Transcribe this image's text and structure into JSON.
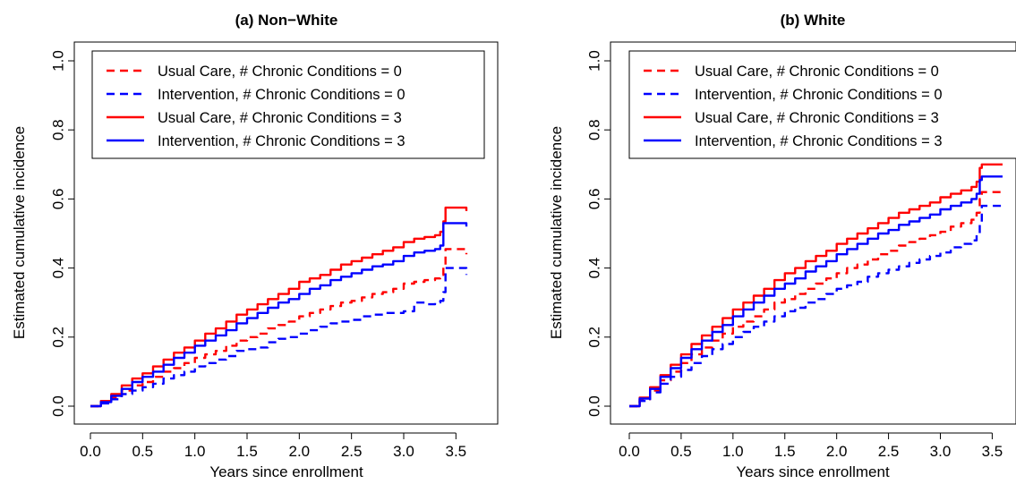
{
  "chart_data": [
    {
      "type": "line",
      "step": true,
      "title": "(a) Non−White",
      "xlabel": "Years since enrollment",
      "ylabel": "Estimated cumulative incidence",
      "xlim": [
        0.0,
        3.6
      ],
      "ylim": [
        0.0,
        1.0
      ],
      "xticks": [
        "0.0",
        "0.5",
        "1.0",
        "1.5",
        "2.0",
        "2.5",
        "3.0",
        "3.5"
      ],
      "yticks": [
        "0.0",
        "0.2",
        "0.4",
        "0.6",
        "0.8",
        "1.0"
      ],
      "legend_position": "top-right",
      "series": [
        {
          "name": "Usual Care, # Chronic Conditions = 0",
          "color": "#ff0000",
          "dash": "dashed",
          "x": [
            0.0,
            0.1,
            0.2,
            0.3,
            0.4,
            0.5,
            0.6,
            0.7,
            0.8,
            0.9,
            1.0,
            1.1,
            1.2,
            1.3,
            1.4,
            1.5,
            1.6,
            1.7,
            1.8,
            1.9,
            2.0,
            2.1,
            2.2,
            2.3,
            2.4,
            2.5,
            2.6,
            2.7,
            2.8,
            2.9,
            3.0,
            3.1,
            3.2,
            3.3,
            3.35,
            3.38,
            3.4,
            3.6
          ],
          "y": [
            0.0,
            0.01,
            0.025,
            0.045,
            0.06,
            0.07,
            0.085,
            0.1,
            0.11,
            0.125,
            0.14,
            0.15,
            0.16,
            0.175,
            0.19,
            0.2,
            0.21,
            0.225,
            0.235,
            0.245,
            0.26,
            0.27,
            0.28,
            0.29,
            0.3,
            0.305,
            0.315,
            0.325,
            0.33,
            0.34,
            0.355,
            0.36,
            0.365,
            0.37,
            0.38,
            0.405,
            0.455,
            0.44
          ]
        },
        {
          "name": "Intervention, # Chronic Conditions = 0",
          "color": "#0000ff",
          "dash": "dashed",
          "x": [
            0.0,
            0.1,
            0.2,
            0.3,
            0.4,
            0.5,
            0.6,
            0.7,
            0.8,
            0.9,
            1.0,
            1.1,
            1.2,
            1.3,
            1.4,
            1.5,
            1.6,
            1.7,
            1.8,
            1.9,
            2.0,
            2.1,
            2.2,
            2.3,
            2.4,
            2.5,
            2.6,
            2.7,
            2.8,
            2.9,
            3.0,
            3.1,
            3.2,
            3.3,
            3.35,
            3.38,
            3.4,
            3.6
          ],
          "y": [
            0.0,
            0.008,
            0.02,
            0.035,
            0.045,
            0.055,
            0.065,
            0.08,
            0.09,
            0.1,
            0.115,
            0.125,
            0.135,
            0.145,
            0.16,
            0.165,
            0.17,
            0.185,
            0.195,
            0.2,
            0.21,
            0.22,
            0.23,
            0.24,
            0.245,
            0.25,
            0.26,
            0.265,
            0.27,
            0.27,
            0.275,
            0.3,
            0.295,
            0.3,
            0.305,
            0.33,
            0.4,
            0.38
          ]
        },
        {
          "name": "Usual Care, # Chronic Conditions = 3",
          "color": "#ff0000",
          "dash": "solid",
          "x": [
            0.0,
            0.1,
            0.2,
            0.3,
            0.4,
            0.5,
            0.6,
            0.7,
            0.8,
            0.9,
            1.0,
            1.1,
            1.2,
            1.3,
            1.4,
            1.5,
            1.6,
            1.7,
            1.8,
            1.9,
            2.0,
            2.1,
            2.2,
            2.3,
            2.4,
            2.5,
            2.6,
            2.7,
            2.8,
            2.9,
            3.0,
            3.1,
            3.2,
            3.3,
            3.35,
            3.38,
            3.4,
            3.6
          ],
          "y": [
            0.0,
            0.015,
            0.035,
            0.06,
            0.08,
            0.095,
            0.115,
            0.135,
            0.155,
            0.17,
            0.19,
            0.21,
            0.225,
            0.245,
            0.265,
            0.28,
            0.295,
            0.31,
            0.325,
            0.34,
            0.36,
            0.37,
            0.38,
            0.395,
            0.41,
            0.42,
            0.43,
            0.44,
            0.45,
            0.46,
            0.475,
            0.485,
            0.49,
            0.495,
            0.505,
            0.535,
            0.575,
            0.565
          ]
        },
        {
          "name": "Intervention, # Chronic Conditions = 3",
          "color": "#0000ff",
          "dash": "solid",
          "x": [
            0.0,
            0.1,
            0.2,
            0.3,
            0.4,
            0.5,
            0.6,
            0.7,
            0.8,
            0.9,
            1.0,
            1.1,
            1.2,
            1.3,
            1.4,
            1.5,
            1.6,
            1.7,
            1.8,
            1.9,
            2.0,
            2.1,
            2.2,
            2.3,
            2.4,
            2.5,
            2.6,
            2.7,
            2.8,
            2.9,
            3.0,
            3.1,
            3.2,
            3.3,
            3.35,
            3.38,
            3.4,
            3.6
          ],
          "y": [
            0.0,
            0.012,
            0.03,
            0.05,
            0.07,
            0.085,
            0.1,
            0.12,
            0.14,
            0.155,
            0.175,
            0.19,
            0.205,
            0.22,
            0.24,
            0.255,
            0.27,
            0.285,
            0.3,
            0.31,
            0.325,
            0.34,
            0.35,
            0.365,
            0.375,
            0.385,
            0.395,
            0.405,
            0.41,
            0.42,
            0.435,
            0.445,
            0.45,
            0.455,
            0.465,
            0.53,
            0.53,
            0.52
          ]
        }
      ]
    },
    {
      "type": "line",
      "step": true,
      "title": "(b) White",
      "xlabel": "Years since enrollment",
      "ylabel": "Estimated cumulative incidence",
      "xlim": [
        0.0,
        3.6
      ],
      "ylim": [
        0.0,
        1.0
      ],
      "xticks": [
        "0.0",
        "0.5",
        "1.0",
        "1.5",
        "2.0",
        "2.5",
        "3.0",
        "3.5"
      ],
      "yticks": [
        "0.0",
        "0.2",
        "0.4",
        "0.6",
        "0.8",
        "1.0"
      ],
      "legend_position": "top-right",
      "series": [
        {
          "name": "Usual Care, # Chronic Conditions = 0",
          "color": "#ff0000",
          "dash": "dashed",
          "x": [
            0.0,
            0.1,
            0.2,
            0.3,
            0.4,
            0.5,
            0.6,
            0.7,
            0.8,
            0.9,
            1.0,
            1.1,
            1.2,
            1.3,
            1.4,
            1.5,
            1.6,
            1.7,
            1.8,
            1.9,
            2.0,
            2.1,
            2.2,
            2.3,
            2.4,
            2.5,
            2.6,
            2.7,
            2.8,
            2.9,
            3.0,
            3.1,
            3.2,
            3.3,
            3.35,
            3.38,
            3.4,
            3.6
          ],
          "y": [
            0.0,
            0.02,
            0.045,
            0.075,
            0.1,
            0.125,
            0.15,
            0.17,
            0.19,
            0.21,
            0.23,
            0.245,
            0.26,
            0.28,
            0.3,
            0.31,
            0.325,
            0.34,
            0.355,
            0.37,
            0.385,
            0.4,
            0.41,
            0.425,
            0.44,
            0.45,
            0.465,
            0.475,
            0.485,
            0.495,
            0.505,
            0.52,
            0.53,
            0.54,
            0.56,
            0.6,
            0.62,
            0.615
          ]
        },
        {
          "name": "Intervention, # Chronic Conditions = 0",
          "color": "#0000ff",
          "dash": "dashed",
          "x": [
            0.0,
            0.1,
            0.2,
            0.3,
            0.4,
            0.5,
            0.6,
            0.7,
            0.8,
            0.9,
            1.0,
            1.1,
            1.2,
            1.3,
            1.4,
            1.5,
            1.6,
            1.7,
            1.8,
            1.9,
            2.0,
            2.1,
            2.2,
            2.3,
            2.4,
            2.5,
            2.6,
            2.7,
            2.8,
            2.9,
            3.0,
            3.1,
            3.2,
            3.3,
            3.35,
            3.38,
            3.4,
            3.6
          ],
          "y": [
            0.0,
            0.015,
            0.04,
            0.065,
            0.085,
            0.105,
            0.125,
            0.145,
            0.165,
            0.18,
            0.2,
            0.215,
            0.23,
            0.245,
            0.26,
            0.275,
            0.285,
            0.3,
            0.31,
            0.325,
            0.34,
            0.35,
            0.36,
            0.375,
            0.385,
            0.395,
            0.405,
            0.415,
            0.425,
            0.435,
            0.445,
            0.46,
            0.47,
            0.48,
            0.495,
            0.53,
            0.58,
            0.575
          ]
        },
        {
          "name": "Usual Care, # Chronic Conditions = 3",
          "color": "#ff0000",
          "dash": "solid",
          "x": [
            0.0,
            0.1,
            0.2,
            0.3,
            0.4,
            0.5,
            0.6,
            0.7,
            0.8,
            0.9,
            1.0,
            1.1,
            1.2,
            1.3,
            1.4,
            1.5,
            1.6,
            1.7,
            1.8,
            1.9,
            2.0,
            2.1,
            2.2,
            2.3,
            2.4,
            2.5,
            2.6,
            2.7,
            2.8,
            2.9,
            3.0,
            3.1,
            3.2,
            3.3,
            3.35,
            3.38,
            3.4,
            3.6
          ],
          "y": [
            0.0,
            0.025,
            0.055,
            0.09,
            0.12,
            0.15,
            0.18,
            0.205,
            0.23,
            0.255,
            0.28,
            0.3,
            0.32,
            0.34,
            0.365,
            0.385,
            0.4,
            0.42,
            0.435,
            0.45,
            0.47,
            0.485,
            0.5,
            0.515,
            0.53,
            0.545,
            0.56,
            0.57,
            0.58,
            0.59,
            0.605,
            0.615,
            0.625,
            0.635,
            0.65,
            0.69,
            0.7,
            0.7
          ]
        },
        {
          "name": "Intervention, # Chronic Conditions = 3",
          "color": "#0000ff",
          "dash": "solid",
          "x": [
            0.0,
            0.1,
            0.2,
            0.3,
            0.4,
            0.5,
            0.6,
            0.7,
            0.8,
            0.9,
            1.0,
            1.1,
            1.2,
            1.3,
            1.4,
            1.5,
            1.6,
            1.7,
            1.8,
            1.9,
            2.0,
            2.1,
            2.2,
            2.3,
            2.4,
            2.5,
            2.6,
            2.7,
            2.8,
            2.9,
            3.0,
            3.1,
            3.2,
            3.3,
            3.35,
            3.38,
            3.4,
            3.6
          ],
          "y": [
            0.0,
            0.022,
            0.05,
            0.085,
            0.11,
            0.14,
            0.165,
            0.19,
            0.215,
            0.235,
            0.26,
            0.28,
            0.3,
            0.32,
            0.34,
            0.355,
            0.37,
            0.39,
            0.405,
            0.42,
            0.44,
            0.455,
            0.47,
            0.485,
            0.5,
            0.51,
            0.525,
            0.535,
            0.545,
            0.555,
            0.57,
            0.58,
            0.59,
            0.6,
            0.615,
            0.655,
            0.665,
            0.665
          ]
        }
      ]
    }
  ]
}
